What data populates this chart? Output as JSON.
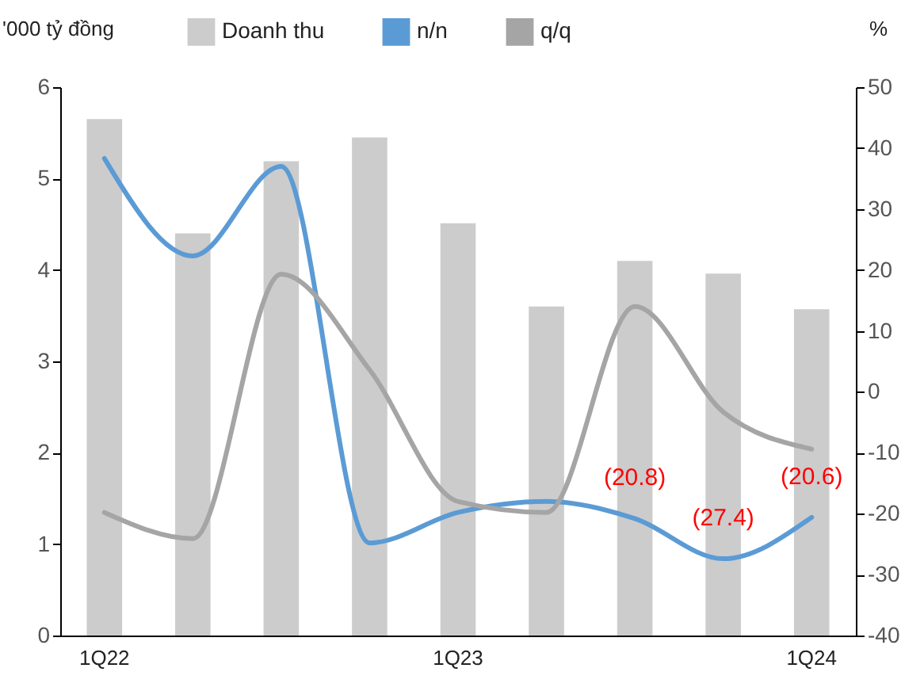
{
  "chart_data": {
    "type": "bar",
    "ylabel": "'000 tỷ đồng",
    "y2label": "%",
    "categories": [
      "1Q22",
      null,
      null,
      null,
      "1Q23",
      null,
      null,
      null,
      "1Q24"
    ],
    "series": [
      {
        "name": "Doanh thu",
        "color": "#cccccc",
        "values": [
          5.65,
          4.4,
          5.19,
          5.45,
          4.51,
          3.6,
          4.1,
          3.96,
          3.57
        ]
      },
      {
        "name": "n/n",
        "type": "line",
        "axis": "y2",
        "color": "#5b9bd5",
        "values": [
          38.3,
          22.3,
          37,
          -24.8,
          -19.8,
          -18,
          -20.8,
          -27.4,
          -20.6
        ],
        "value_labels": [
          null,
          null,
          null,
          null,
          null,
          null,
          "(20.8)",
          "(27.4)",
          "(20.6)"
        ]
      },
      {
        "name": "q/q",
        "type": "line",
        "axis": "y2",
        "color": "#a5a5a5",
        "values": [
          -19.8,
          -24.1,
          19.3,
          3.6,
          -18,
          -19.8,
          14,
          -3.3,
          -9.4
        ]
      }
    ],
    "ylim": [
      0,
      6
    ],
    "yticks": [
      0,
      1,
      2,
      3,
      4,
      5,
      6
    ],
    "y2lim": [
      -40,
      50
    ],
    "y2ticks": [
      -40,
      -30,
      -20,
      -10,
      0,
      10,
      20,
      30,
      40,
      50
    ],
    "legend": "top",
    "grid": false
  }
}
